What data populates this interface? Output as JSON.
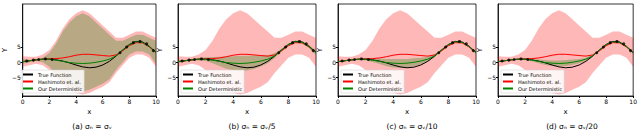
{
  "chart_data": [
    {
      "type": "line",
      "title": "(a) σₙ = σᵥ",
      "x_label": "x",
      "y_label": "Y",
      "xlim": [
        0,
        10
      ],
      "xticks": [
        0,
        2,
        4,
        6,
        8,
        10
      ],
      "ylim": [
        -11,
        19
      ],
      "yticks": [
        {
          "value": -5,
          "label": "−5"
        },
        0,
        5
      ],
      "grid": false,
      "legend": "lower left",
      "x": [
        0,
        0.5,
        1,
        1.5,
        2,
        2.5,
        3,
        3.5,
        4,
        4.5,
        5,
        5.5,
        6,
        6.5,
        7,
        7.5,
        8,
        8.5,
        9,
        9.5,
        10
      ],
      "series": [
        {
          "name": "True Function",
          "type": "line",
          "color": "#000000",
          "values": [
            0.2,
            0.5,
            0.8,
            1.0,
            1.0,
            0.8,
            0.4,
            -0.2,
            -0.9,
            -1.5,
            -1.8,
            -1.6,
            -0.9,
            0.3,
            2.0,
            4.0,
            5.8,
            6.8,
            6.6,
            5.2,
            3.2
          ]
        },
        {
          "name": "Hashimoto et. al.",
          "type": "line",
          "color": "#ff0000",
          "values": [
            0.2,
            0.5,
            0.8,
            1.0,
            1.1,
            1.2,
            1.4,
            1.8,
            2.3,
            2.6,
            2.6,
            2.4,
            2.2,
            2.0,
            2.4,
            3.7,
            5.4,
            6.4,
            6.3,
            5.0,
            3.1
          ]
        },
        {
          "name": "Our Deterministic",
          "type": "line",
          "color": "#008000",
          "values": [
            0.2,
            0.5,
            0.8,
            1.0,
            1.0,
            0.7,
            0.3,
            -0.1,
            -0.3,
            -0.4,
            -0.3,
            0,
            0.4,
            1.0,
            2.1,
            3.9,
            5.7,
            6.7,
            6.5,
            5.1,
            3.1
          ]
        },
        {
          "type": "band",
          "color": "#ff0000",
          "upper": [
            2,
            1.8,
            1.8,
            2.5,
            4,
            7,
            11,
            14,
            16,
            17,
            16,
            14,
            12,
            10,
            8,
            8,
            9,
            10,
            10,
            9,
            8
          ],
          "lower": [
            -1.5,
            -1,
            -0.5,
            -1,
            -2.5,
            -5,
            -7.5,
            -9,
            -10,
            -10.5,
            -10,
            -9,
            -8,
            -6.5,
            -3.5,
            -1,
            1.5,
            2.5,
            2.5,
            1.5,
            -1.5
          ]
        },
        {
          "type": "band",
          "color": "#008000",
          "upper": [
            1,
            0.8,
            0.8,
            1.5,
            3,
            6,
            10,
            13,
            15,
            16,
            15,
            13,
            11,
            9,
            7,
            7,
            8,
            9,
            9,
            8,
            7
          ],
          "lower": [
            -0.5,
            0,
            0.5,
            0,
            -1.5,
            -4,
            -6.5,
            -8,
            -9,
            -9.5,
            -9,
            -8,
            -7,
            -5.5,
            -2.5,
            0,
            2.5,
            3.5,
            3.5,
            2.5,
            -0.5
          ]
        },
        {
          "type": "scatter",
          "color": "#000000",
          "marker": "circle",
          "x": [
            0.3,
            0.8,
            1.2,
            1.7,
            2.2,
            7.3,
            7.8,
            8.3,
            8.8,
            9.3,
            9.8
          ],
          "values": [
            0.4,
            0.7,
            0.9,
            1.1,
            0.9,
            3.1,
            5.0,
            6.4,
            6.8,
            6.0,
            3.8
          ]
        }
      ]
    },
    {
      "type": "line",
      "title": "(b) σₙ = σᵥ/5",
      "x_label": "x",
      "y_label": "Y",
      "xlim": [
        0,
        10
      ],
      "xticks": [
        0,
        2,
        4,
        6,
        8,
        10
      ],
      "ylim": [
        -11,
        19
      ],
      "yticks": [
        {
          "value": -5,
          "label": "−5"
        },
        0,
        5
      ],
      "grid": false,
      "legend": "lower left",
      "x": [
        0,
        0.5,
        1,
        1.5,
        2,
        2.5,
        3,
        3.5,
        4,
        4.5,
        5,
        5.5,
        6,
        6.5,
        7,
        7.5,
        8,
        8.5,
        9,
        9.5,
        10
      ],
      "series": [
        {
          "name": "True Function",
          "type": "line",
          "color": "#000000",
          "values": [
            0.2,
            0.5,
            0.8,
            1.0,
            1.0,
            0.8,
            0.4,
            -0.2,
            -0.9,
            -1.5,
            -1.8,
            -1.6,
            -0.9,
            0.3,
            2.0,
            4.0,
            5.8,
            6.8,
            6.6,
            5.2,
            3.2
          ]
        },
        {
          "name": "Hashimoto et. al.",
          "type": "line",
          "color": "#ff0000",
          "values": [
            0.2,
            0.5,
            0.8,
            1.0,
            1.1,
            1.2,
            1.4,
            1.8,
            2.3,
            2.6,
            2.6,
            2.4,
            2.2,
            2.0,
            2.4,
            3.7,
            5.4,
            6.4,
            6.3,
            5.0,
            3.1
          ]
        },
        {
          "name": "Our Deterministic",
          "type": "line",
          "color": "#008000",
          "values": [
            0.2,
            0.5,
            0.8,
            1.0,
            1.0,
            0.7,
            0.3,
            -0.1,
            -0.3,
            -0.4,
            -0.3,
            0,
            0.4,
            1.0,
            2.1,
            3.9,
            5.7,
            6.7,
            6.5,
            5.1,
            3.1
          ]
        },
        {
          "type": "band",
          "color": "#ff0000",
          "upper": [
            2,
            1.8,
            1.8,
            2.5,
            4,
            7,
            11,
            14,
            16,
            17,
            16,
            14,
            12,
            10,
            8,
            8,
            9,
            10,
            10,
            9,
            8
          ],
          "lower": [
            -1.5,
            -1,
            -0.5,
            -1,
            -2.5,
            -5,
            -7.5,
            -9,
            -10,
            -10.5,
            -10,
            -9,
            -8,
            -6.5,
            -3.5,
            -1,
            1.5,
            2.5,
            2.5,
            1.5,
            -1.5
          ]
        },
        {
          "type": "band",
          "color": "#008000",
          "upper": [
            0.6,
            0.8,
            1.1,
            1.4,
            1.6,
            1.7,
            1.8,
            1.9,
            2.0,
            2.1,
            2.1,
            2.2,
            2.2,
            2.3,
            2.9,
            4.4,
            6.1,
            7.1,
            6.9,
            5.6,
            3.8
          ],
          "lower": [
            -0.2,
            0.2,
            0.5,
            0.6,
            0.4,
            -0.3,
            -1.2,
            -2.1,
            -2.6,
            -2.9,
            -2.7,
            -2.2,
            -1.4,
            -0.3,
            1.3,
            3.4,
            5.3,
            6.3,
            6.1,
            4.6,
            2.4
          ]
        },
        {
          "type": "scatter",
          "color": "#000000",
          "marker": "circle",
          "x": [
            0.3,
            0.8,
            1.2,
            1.7,
            2.2,
            7.3,
            7.8,
            8.3,
            8.8,
            9.3,
            9.8
          ],
          "values": [
            0.4,
            0.7,
            0.9,
            1.1,
            0.9,
            3.1,
            5.0,
            6.4,
            6.8,
            6.0,
            3.8
          ]
        }
      ]
    },
    {
      "type": "line",
      "title": "(c) σₙ = σᵥ/10",
      "x_label": "x",
      "y_label": "Y",
      "xlim": [
        0,
        10
      ],
      "xticks": [
        0,
        2,
        4,
        6,
        8,
        10
      ],
      "ylim": [
        -11,
        19
      ],
      "yticks": [
        {
          "value": -5,
          "label": "−5"
        },
        0,
        5
      ],
      "grid": false,
      "legend": "lower left",
      "x": [
        0,
        0.5,
        1,
        1.5,
        2,
        2.5,
        3,
        3.5,
        4,
        4.5,
        5,
        5.5,
        6,
        6.5,
        7,
        7.5,
        8,
        8.5,
        9,
        9.5,
        10
      ],
      "series": [
        {
          "name": "True Function",
          "type": "line",
          "color": "#000000",
          "values": [
            0.2,
            0.5,
            0.8,
            1.0,
            1.0,
            0.8,
            0.4,
            -0.2,
            -0.9,
            -1.5,
            -1.8,
            -1.6,
            -0.9,
            0.3,
            2.0,
            4.0,
            5.8,
            6.8,
            6.6,
            5.2,
            3.2
          ]
        },
        {
          "name": "Hashimoto et. al.",
          "type": "line",
          "color": "#ff0000",
          "values": [
            0.2,
            0.5,
            0.8,
            1.0,
            1.1,
            1.2,
            1.4,
            1.8,
            2.3,
            2.6,
            2.6,
            2.4,
            2.2,
            2.0,
            2.4,
            3.7,
            5.4,
            6.4,
            6.3,
            5.0,
            3.1
          ]
        },
        {
          "name": "Our Deterministic",
          "type": "line",
          "color": "#008000",
          "values": [
            0.2,
            0.5,
            0.8,
            1.0,
            1.0,
            0.7,
            0.3,
            -0.1,
            -0.3,
            -0.4,
            -0.3,
            0,
            0.4,
            1.0,
            2.1,
            3.9,
            5.7,
            6.7,
            6.5,
            5.1,
            3.1
          ]
        },
        {
          "type": "band",
          "color": "#ff0000",
          "upper": [
            2,
            1.8,
            1.8,
            2.5,
            4,
            7,
            11,
            14,
            16,
            17,
            16,
            14,
            12,
            10,
            8,
            8,
            9,
            10,
            10,
            9,
            8
          ],
          "lower": [
            -1.5,
            -1,
            -0.5,
            -1,
            -2.5,
            -5,
            -7.5,
            -9,
            -10,
            -10.5,
            -10,
            -9,
            -8,
            -6.5,
            -3.5,
            -1,
            1.5,
            2.5,
            2.5,
            1.5,
            -1.5
          ]
        },
        {
          "type": "band",
          "color": "#008000",
          "upper": [
            0.4,
            0.7,
            1.0,
            1.2,
            1.4,
            1.3,
            1.2,
            1.1,
            1.1,
            1.1,
            1.1,
            1.3,
            1.5,
            1.8,
            2.6,
            4.2,
            5.9,
            6.9,
            6.7,
            5.4,
            3.5
          ],
          "lower": [
            0.0,
            0.3,
            0.6,
            0.8,
            0.6,
            0.1,
            -0.6,
            -1.3,
            -1.7,
            -1.9,
            -1.7,
            -1.3,
            -0.7,
            0.2,
            1.6,
            3.6,
            5.5,
            6.5,
            6.3,
            4.8,
            2.7
          ]
        },
        {
          "type": "scatter",
          "color": "#000000",
          "marker": "circle",
          "x": [
            0.3,
            0.8,
            1.2,
            1.7,
            2.2,
            7.3,
            7.8,
            8.3,
            8.8,
            9.3,
            9.8
          ],
          "values": [
            0.4,
            0.7,
            0.9,
            1.1,
            0.9,
            3.1,
            5.0,
            6.4,
            6.8,
            6.0,
            3.8
          ]
        }
      ]
    },
    {
      "type": "line",
      "title": "(d) σₙ = σᵥ/20",
      "x_label": "x",
      "y_label": "Y",
      "xlim": [
        0,
        10
      ],
      "xticks": [
        0,
        2,
        4,
        6,
        8,
        10
      ],
      "ylim": [
        -11,
        19
      ],
      "yticks": [
        {
          "value": -5,
          "label": "−5"
        },
        0,
        5
      ],
      "grid": false,
      "legend": "lower left",
      "x": [
        0,
        0.5,
        1,
        1.5,
        2,
        2.5,
        3,
        3.5,
        4,
        4.5,
        5,
        5.5,
        6,
        6.5,
        7,
        7.5,
        8,
        8.5,
        9,
        9.5,
        10
      ],
      "series": [
        {
          "name": "True Function",
          "type": "line",
          "color": "#000000",
          "values": [
            0.2,
            0.5,
            0.8,
            1.0,
            1.0,
            0.8,
            0.4,
            -0.2,
            -0.9,
            -1.5,
            -1.8,
            -1.6,
            -0.9,
            0.3,
            2.0,
            4.0,
            5.8,
            6.8,
            6.6,
            5.2,
            3.2
          ]
        },
        {
          "name": "Hashimoto et. al.",
          "type": "line",
          "color": "#ff0000",
          "values": [
            0.2,
            0.5,
            0.8,
            1.0,
            1.1,
            1.2,
            1.4,
            1.8,
            2.3,
            2.6,
            2.6,
            2.4,
            2.2,
            2.0,
            2.4,
            3.7,
            5.4,
            6.4,
            6.3,
            5.0,
            3.1
          ]
        },
        {
          "name": "Our Deterministic",
          "type": "line",
          "color": "#008000",
          "values": [
            0.2,
            0.5,
            0.8,
            1.0,
            1.0,
            0.7,
            0.3,
            -0.1,
            -0.3,
            -0.4,
            -0.3,
            0,
            0.4,
            1.0,
            2.1,
            3.9,
            5.7,
            6.7,
            6.5,
            5.1,
            3.1
          ]
        },
        {
          "type": "band",
          "color": "#ff0000",
          "upper": [
            2,
            1.8,
            1.8,
            2.5,
            4,
            7,
            11,
            14,
            16,
            17,
            16,
            14,
            12,
            10,
            8,
            8,
            9,
            10,
            10,
            9,
            8
          ],
          "lower": [
            -1.5,
            -1,
            -0.5,
            -1,
            -2.5,
            -5,
            -7.5,
            -9,
            -10,
            -10.5,
            -10,
            -9,
            -8,
            -6.5,
            -3.5,
            -1,
            1.5,
            2.5,
            2.5,
            1.5,
            -1.5
          ]
        },
        {
          "type": "band",
          "color": "#008000",
          "upper": [
            0.4,
            0.6,
            0.9,
            1.2,
            1.3,
            1.1,
            0.9,
            0.7,
            0.6,
            0.6,
            0.7,
            0.9,
            1.1,
            1.5,
            2.4,
            4.1,
            5.9,
            6.9,
            6.7,
            5.3,
            3.4
          ],
          "lower": [
            0.0,
            0.4,
            0.7,
            0.8,
            0.7,
            0.3,
            -0.3,
            -0.9,
            -1.2,
            -1.4,
            -1.3,
            -0.9,
            -0.3,
            0.5,
            1.8,
            3.7,
            5.5,
            6.5,
            6.3,
            4.9,
            2.8
          ]
        },
        {
          "type": "scatter",
          "color": "#000000",
          "marker": "circle",
          "x": [
            0.3,
            0.8,
            1.2,
            1.7,
            2.2,
            7.3,
            7.8,
            8.3,
            8.8,
            9.3,
            9.8
          ],
          "values": [
            0.4,
            0.7,
            0.9,
            1.1,
            0.9,
            3.1,
            5.0,
            6.4,
            6.8,
            6.0,
            3.8
          ]
        }
      ]
    }
  ]
}
